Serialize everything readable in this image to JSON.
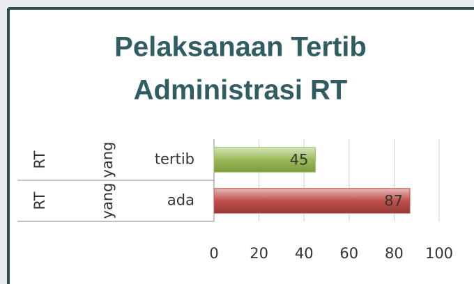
{
  "chart_data": {
    "type": "bar",
    "orientation": "horizontal",
    "title": [
      "Pelaksanaan Tertib",
      "Administrasi RT"
    ],
    "categories": [
      [
        "RT",
        "yang",
        "tertib"
      ],
      [
        "RT",
        "yang",
        "ada"
      ]
    ],
    "values": [
      45,
      87
    ],
    "colors": [
      "#9bbb59",
      "#c0504d"
    ],
    "xlim": [
      0,
      100
    ],
    "xticks": [
      0,
      20,
      40,
      60,
      80,
      100
    ],
    "grid": true
  }
}
